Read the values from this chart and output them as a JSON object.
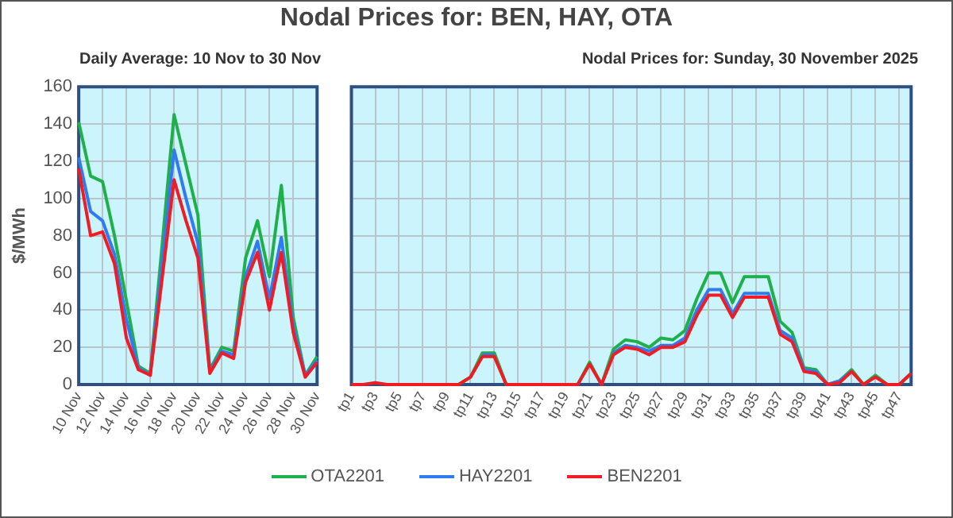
{
  "chart_data": [
    {
      "type": "line",
      "subtitle": "Daily Average: 10 Nov to 30 Nov",
      "ylabel": "$/MWh",
      "categories": [
        "10 Nov",
        null,
        "12 Nov",
        null,
        "14 Nov",
        null,
        "16 Nov",
        null,
        "18 Nov",
        null,
        "20 Nov",
        null,
        "22 Nov",
        null,
        "24 Nov",
        null,
        "26 Nov",
        null,
        "28 Nov",
        null,
        "30 Nov"
      ],
      "series": [
        {
          "color": "#1fb04c",
          "values": [
            141,
            112,
            109,
            80,
            45,
            10,
            6,
            75,
            145,
            118,
            91,
            8,
            20,
            18,
            68,
            88,
            58,
            107,
            36,
            5,
            15
          ]
        },
        {
          "color": "#2f7bef",
          "values": [
            122,
            93,
            88,
            70,
            35,
            9,
            5,
            65,
            126,
            100,
            76,
            7,
            18,
            16,
            58,
            77,
            46,
            79,
            31,
            5,
            13
          ]
        },
        {
          "color": "#ee1c25",
          "values": [
            116,
            80,
            82,
            65,
            25,
            8,
            5,
            57,
            110,
            88,
            68,
            6,
            17,
            14,
            55,
            71,
            40,
            71,
            28,
            4,
            12
          ]
        }
      ],
      "ylim": [
        0,
        160
      ],
      "yticks": [
        0,
        20,
        40,
        60,
        80,
        100,
        120,
        140,
        160
      ],
      "grid": true
    },
    {
      "type": "line",
      "title": "Nodal Prices for: BEN, HAY, OTA",
      "subtitle": "Nodal Prices for: Sunday, 30 November 2025",
      "categories": [
        "tp1",
        null,
        "tp3",
        null,
        "tp5",
        null,
        "tp7",
        null,
        "tp9",
        null,
        "tp11",
        null,
        "tp13",
        null,
        "tp15",
        null,
        "tp17",
        null,
        "tp19",
        null,
        "tp21",
        null,
        "tp23",
        null,
        "tp25",
        null,
        "tp27",
        null,
        "tp29",
        null,
        "tp31",
        null,
        "tp33",
        null,
        "tp35",
        null,
        "tp37",
        null,
        "tp39",
        null,
        "tp41",
        null,
        "tp43",
        null,
        "tp45",
        null,
        "tp47",
        null
      ],
      "series": [
        {
          "name": "OTA2201",
          "color": "#1fb04c",
          "values": [
            null,
            null,
            null,
            null,
            null,
            null,
            null,
            null,
            null,
            0,
            4,
            17,
            17,
            0,
            0,
            0,
            0,
            0,
            0,
            0,
            12,
            0,
            19,
            24,
            23,
            20,
            25,
            24,
            29,
            46,
            60,
            60,
            44,
            58,
            58,
            58,
            34,
            28,
            9,
            8,
            0,
            2,
            8,
            0,
            5,
            0,
            0,
            6
          ]
        },
        {
          "name": "HAY2201",
          "color": "#2f7bef",
          "values": [
            null,
            null,
            null,
            null,
            null,
            null,
            null,
            null,
            null,
            null,
            null,
            16,
            16,
            null,
            null,
            null,
            null,
            null,
            null,
            null,
            null,
            null,
            17,
            21,
            20,
            18,
            21,
            21,
            25,
            40,
            51,
            51,
            38,
            49,
            49,
            49,
            29,
            25,
            8,
            7,
            0,
            2,
            7,
            null,
            null,
            null,
            null,
            null
          ]
        },
        {
          "name": "BEN2201",
          "color": "#ee1c25",
          "values": [
            0,
            0,
            1,
            0,
            0,
            0,
            0,
            0,
            0,
            0,
            4,
            15,
            15,
            0,
            0,
            0,
            0,
            0,
            0,
            0,
            11,
            0,
            16,
            20,
            19,
            16,
            20,
            20,
            23,
            37,
            48,
            48,
            36,
            47,
            47,
            47,
            27,
            23,
            7,
            6,
            0,
            1,
            7,
            0,
            4,
            0,
            0,
            6
          ]
        }
      ],
      "ylim": [
        0,
        160
      ],
      "yticks": [
        0,
        20,
        40,
        60,
        80,
        100,
        120,
        140,
        160
      ],
      "grid": true,
      "tick_labels": "x",
      "legend": "bottom"
    }
  ]
}
